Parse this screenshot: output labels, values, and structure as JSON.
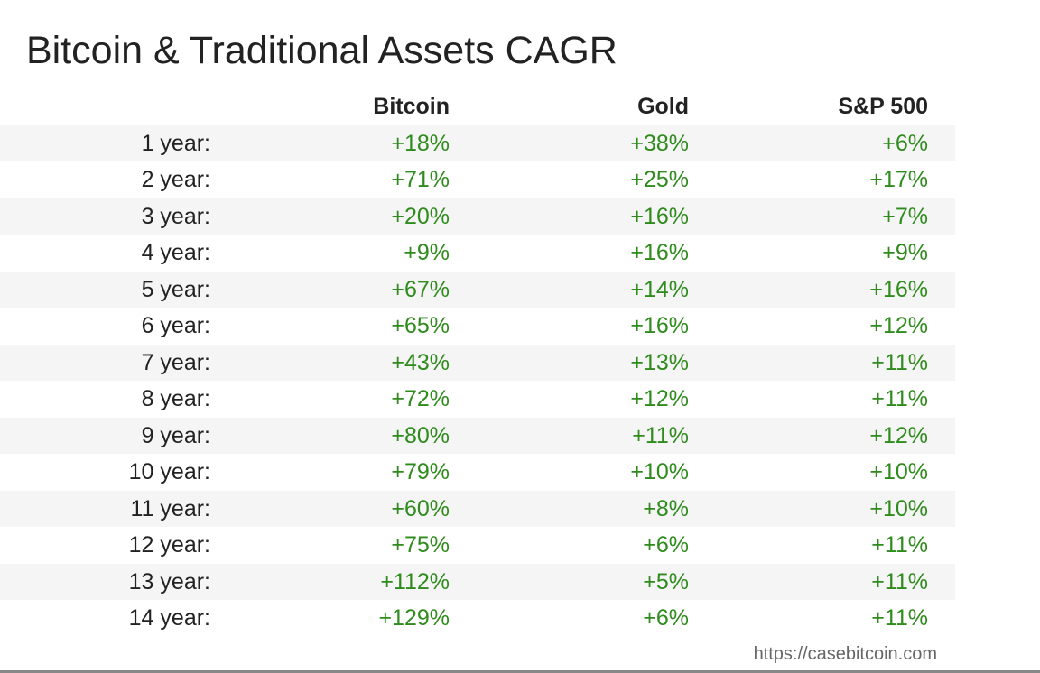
{
  "title": "Bitcoin & Traditional Assets CAGR",
  "columns": {
    "bitcoin": "Bitcoin",
    "gold": "Gold",
    "sp500": "S&P 500"
  },
  "rows": [
    {
      "label": "1 year:",
      "bitcoin": "+18%",
      "gold": "+38%",
      "sp500": "+6%"
    },
    {
      "label": "2 year:",
      "bitcoin": "+71%",
      "gold": "+25%",
      "sp500": "+17%"
    },
    {
      "label": "3 year:",
      "bitcoin": "+20%",
      "gold": "+16%",
      "sp500": "+7%"
    },
    {
      "label": "4 year:",
      "bitcoin": "+9%",
      "gold": "+16%",
      "sp500": "+9%"
    },
    {
      "label": "5 year:",
      "bitcoin": "+67%",
      "gold": "+14%",
      "sp500": "+16%"
    },
    {
      "label": "6 year:",
      "bitcoin": "+65%",
      "gold": "+16%",
      "sp500": "+12%"
    },
    {
      "label": "7 year:",
      "bitcoin": "+43%",
      "gold": "+13%",
      "sp500": "+11%"
    },
    {
      "label": "8 year:",
      "bitcoin": "+72%",
      "gold": "+12%",
      "sp500": "+11%"
    },
    {
      "label": "9 year:",
      "bitcoin": "+80%",
      "gold": "+11%",
      "sp500": "+12%"
    },
    {
      "label": "10 year:",
      "bitcoin": "+79%",
      "gold": "+10%",
      "sp500": "+10%"
    },
    {
      "label": "11 year:",
      "bitcoin": "+60%",
      "gold": "+8%",
      "sp500": "+10%"
    },
    {
      "label": "12 year:",
      "bitcoin": "+75%",
      "gold": "+6%",
      "sp500": "+11%"
    },
    {
      "label": "13 year:",
      "bitcoin": "+112%",
      "gold": "+5%",
      "sp500": "+11%"
    },
    {
      "label": "14 year:",
      "bitcoin": "+129%",
      "gold": "+6%",
      "sp500": "+11%"
    }
  ],
  "footer": {
    "source": "https://casebitcoin.com"
  },
  "colors": {
    "positive": "#2e8b1c",
    "stripe": "#f5f5f5"
  }
}
